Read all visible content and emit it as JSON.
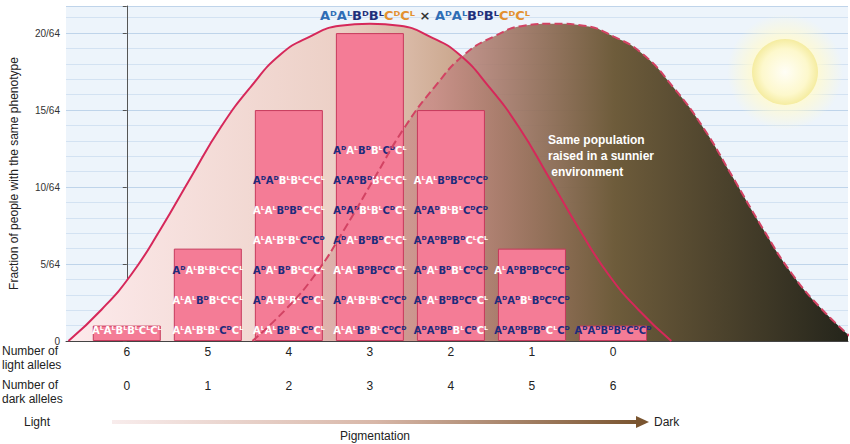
{
  "chart_data": {
    "type": "bar",
    "title": "AᴰAᴸBᴰBᴸCᴰCᴸ × AᴰAᴸBᴰBᴸCᴰCᴸ",
    "ylabel": "Fraction of people with the same phenotype",
    "x": [
      0,
      1,
      2,
      3,
      4,
      5,
      6
    ],
    "x_label": "Number of dark alleles",
    "light_alleles": [
      6,
      5,
      4,
      3,
      2,
      1,
      0
    ],
    "light_alleles_label": "Number of light alleles",
    "xlim": [
      -0.75,
      8.9
    ],
    "xticks": [
      0,
      1,
      2,
      3,
      4,
      5,
      6
    ],
    "ylim": [
      0,
      0.34
    ],
    "yticks": [
      0,
      {
        "value": 0.078125,
        "label": "5/64"
      },
      {
        "value": 0.15625,
        "label": "10/64"
      },
      {
        "value": 0.234375,
        "label": "15/64"
      },
      {
        "value": 0.3125,
        "label": "20/64"
      }
    ],
    "grid": true,
    "pigmentation": {
      "label": "Pigmentation",
      "start": "Light",
      "end": "Dark"
    },
    "series": [
      {
        "type": "bar",
        "color": "#f47c96",
        "values": [
          0.015625,
          0.09375,
          0.234375,
          0.3125,
          0.234375,
          0.09375,
          0.015625
        ],
        "genotypes": [
          [
            "AᴸAᴸBᴸBᴸCᴸCᴸ"
          ],
          [
            "AᴰAᴸBᴸBᴸCᴸCᴸ",
            "AᴸAᴸBᴰBᴸCᴸCᴸ",
            "AᴸAᴸBᴸBᴸCᴰCᴸ"
          ],
          [
            "AᴰAᴰBᴸBᴸCᴸCᴸ",
            "AᴸAᴸBᴰBᴰCᴸCᴸ",
            "AᴸAᴸBᴸBᴸCᴰCᴰ",
            "AᴰAᴸBᴰBᴸCᴸCᴸ",
            "AᴰAᴸBᴸBᴸCᴰCᴸ",
            "AᴸAᴸBᴰBᴸCᴰCᴸ"
          ],
          [
            "AᴰAᴸBᴰBᴸCᴰCᴸ",
            "AᴰAᴰBᴰBᴸCᴸCᴸ",
            "AᴰAᴰBᴸBᴸCᴰCᴸ",
            "AᴰAᴸBᴰBᴰCᴸCᴸ",
            "AᴸAᴸBᴰBᴰCᴰCᴸ",
            "AᴰAᴸBᴸBᴸCᴰCᴰ",
            "AᴸAᴸBᴰBᴸCᴰCᴰ"
          ],
          [
            "AᴸAᴸBᴰBᴰCᴰCᴰ",
            "AᴰAᴰBᴸBᴸCᴰCᴰ",
            "AᴰAᴰBᴰBᴰCᴸCᴸ",
            "AᴰAᴸBᴰBᴸCᴰCᴰ",
            "AᴰAᴸBᴰBᴰCᴰCᴸ",
            "AᴰAᴰBᴰBᴸCᴰCᴸ"
          ],
          [
            "AᴸAᴰBᴰBᴰCᴰCᴰ",
            "AᴰAᴰBᴸBᴰCᴰCᴰ",
            "AᴰAᴰBᴰBᴰCᴸCᴰ"
          ],
          [
            "AᴰAᴰBᴰBᴰCᴰCᴰ"
          ]
        ]
      },
      {
        "type": "line",
        "line_style": "solid",
        "color": "#d6285a",
        "x": [
          -0.72,
          -0.31,
          0.06,
          0.42,
          0.79,
          1.16,
          1.53,
          1.9,
          2.26,
          2.63,
          3,
          3.37,
          3.74,
          4.1,
          4.47,
          4.84,
          5.21,
          5.58,
          5.94,
          6.31,
          6.72
        ],
        "values": [
          0,
          0.032,
          0.068,
          0.114,
          0.166,
          0.217,
          0.258,
          0.291,
          0.309,
          0.32,
          0.322,
          0.32,
          0.309,
          0.291,
          0.258,
          0.217,
          0.166,
          0.114,
          0.068,
          0.032,
          0
        ]
      },
      {
        "type": "line",
        "line_style": "dashed",
        "color": "#d24363",
        "annotation": "Same population raised in a sunnier environment",
        "x": [
          1.55,
          1.96,
          2.33,
          2.69,
          3.06,
          3.43,
          3.8,
          4.17,
          4.53,
          4.9,
          5.27,
          5.64,
          6.01,
          6.37,
          6.74,
          7.11,
          7.48,
          7.85,
          8.21,
          8.58,
          8.99
        ],
        "values": [
          0,
          0.032,
          0.068,
          0.114,
          0.166,
          0.217,
          0.258,
          0.291,
          0.309,
          0.32,
          0.322,
          0.32,
          0.309,
          0.291,
          0.258,
          0.217,
          0.166,
          0.114,
          0.068,
          0.032,
          0
        ]
      }
    ]
  }
}
